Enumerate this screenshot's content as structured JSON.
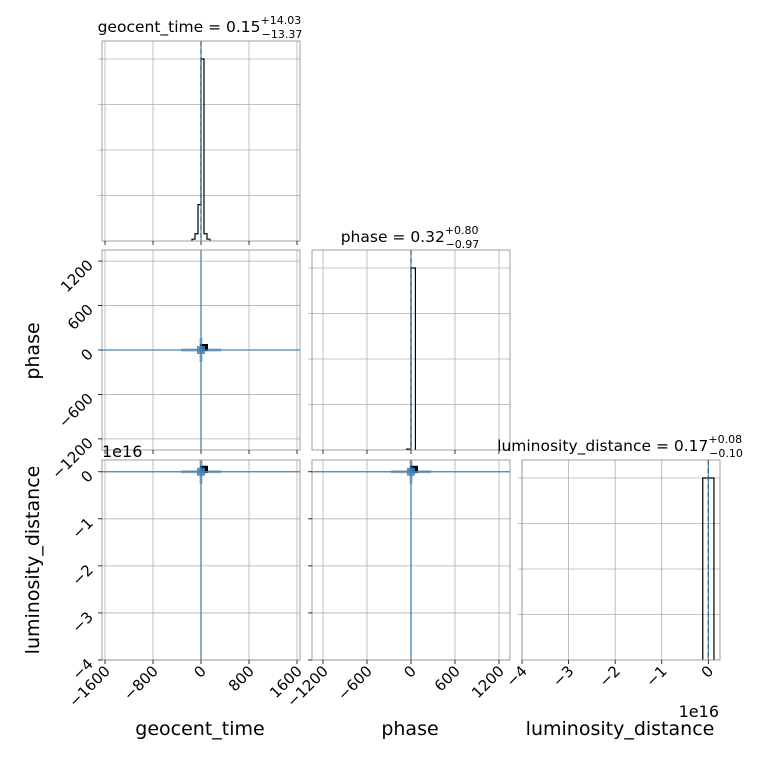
{
  "chart_data": {
    "type": "corner",
    "parameters": [
      "geocent_time",
      "phase",
      "luminosity_distance"
    ],
    "titles": [
      {
        "name": "geocent_time",
        "median": "0.15",
        "plus": "+14.03",
        "minus": "−13.37"
      },
      {
        "name": "phase",
        "median": "0.32",
        "plus": "+0.80",
        "minus": "−0.97"
      },
      {
        "name": "luminosity_distance",
        "median": "0.17",
        "plus": "+0.08",
        "minus": "−0.10"
      }
    ],
    "offset_label": "1e16",
    "axes": {
      "geocent_time": {
        "range": [
          -1650,
          1650
        ],
        "ticks": [
          -1600,
          -800,
          0,
          800,
          1600
        ],
        "tick_labels": [
          "−1600",
          "−800",
          "0",
          "800",
          "1600"
        ]
      },
      "phase": {
        "range": [
          -1350,
          1350
        ],
        "ticks": [
          -1200,
          -600,
          0,
          600,
          1200
        ],
        "tick_labels": [
          "−1200",
          "−600",
          "0",
          "600",
          "1200"
        ]
      },
      "luminosity_distance": {
        "range": [
          -4.0,
          0.25
        ],
        "ticks": [
          -4,
          -3,
          -2,
          -1,
          0
        ],
        "tick_labels": [
          "−4",
          "−3",
          "−2",
          "−1",
          "0"
        ]
      }
    },
    "histograms": {
      "geocent_time": {
        "bin_edges": [
          -150,
          -100,
          -50,
          0,
          50,
          100,
          150
        ],
        "counts": [
          0.01,
          0.04,
          0.2,
          1.0,
          0.04,
          0.01
        ]
      },
      "phase": {
        "bin_edges": [
          -60,
          0,
          60
        ],
        "counts": [
          0.005,
          1.0
        ]
      },
      "luminosity_distance": {
        "bin_edges": [
          -0.12,
          0.0,
          0.12
        ],
        "counts": [
          1.0,
          1.0
        ]
      }
    },
    "truths": {
      "geocent_time": 0,
      "phase": 0,
      "luminosity_distance": 0
    },
    "grid": true,
    "colors": {
      "histogram": "#000000",
      "truth": "#4682b4",
      "median": "#000000"
    }
  }
}
